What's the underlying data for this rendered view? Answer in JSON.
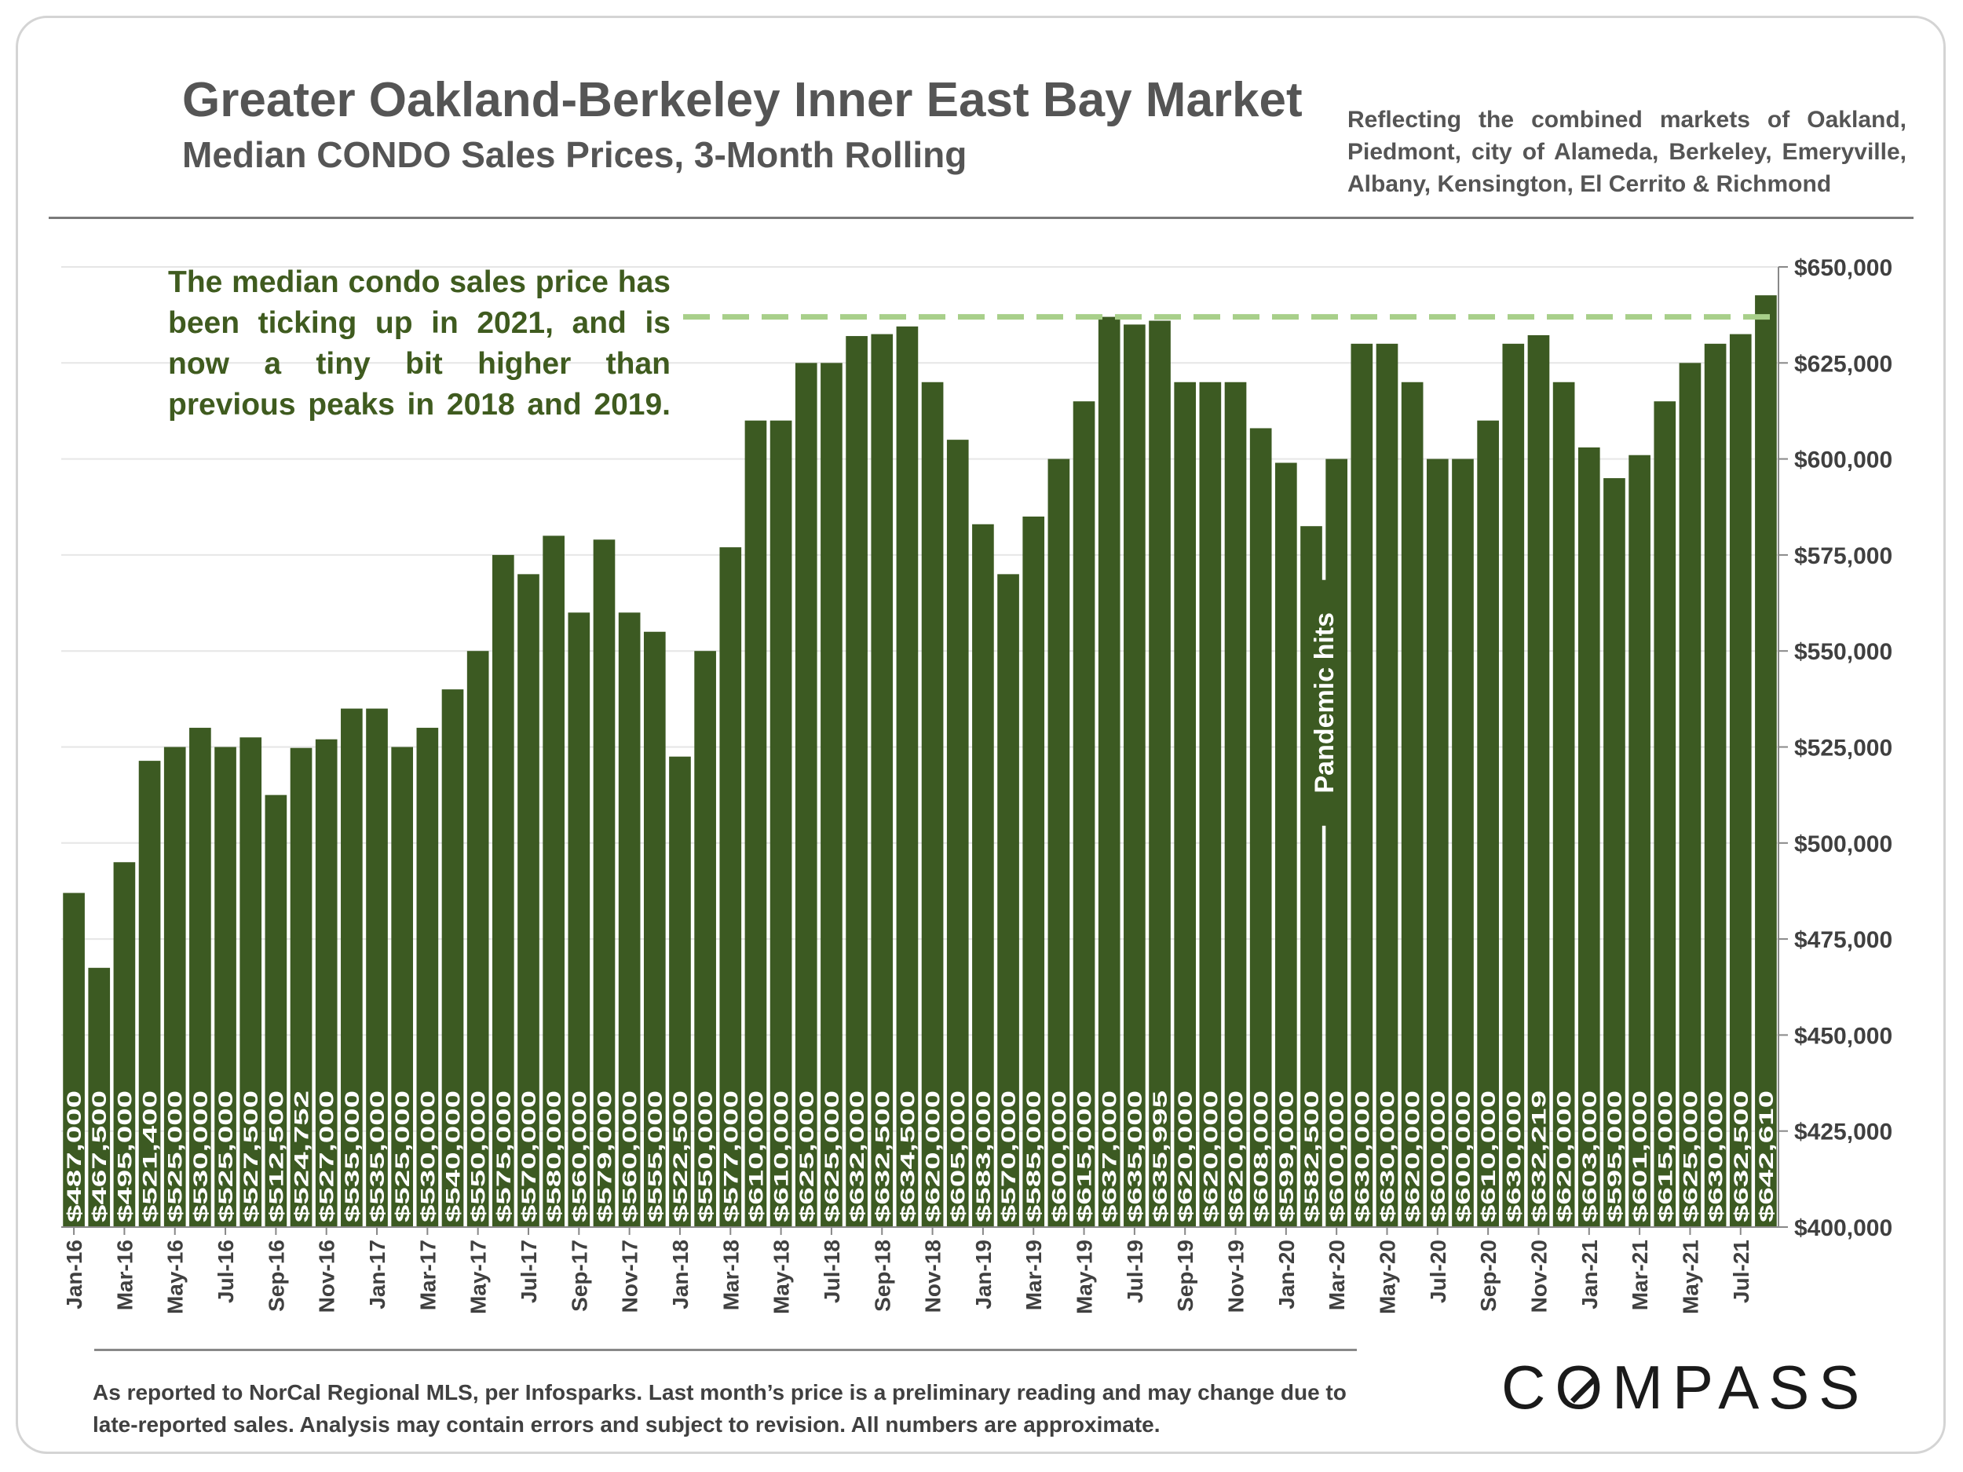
{
  "header": {
    "title": "Greater Oakland-Berkeley Inner East Bay Market",
    "subtitle": "Median CONDO Sales Prices, 3-Month Rolling",
    "note": "Reflecting the combined markets of Oakland, Piedmont, city of Alameda, Berkeley, Emeryville, Albany, Kensington, El Cerrito & Richmond"
  },
  "annotation": "The median condo sales price has been ticking up in 2021, and is now a tiny bit higher than previous peaks in 2018 and 2019.",
  "footer": "As reported to NorCal Regional MLS, per Infosparks. Last month’s price is a preliminary reading and may change due to late-reported sales. Analysis may contain errors and subject to revision. All numbers are approximate.",
  "brand": {
    "logo": "COMPASS"
  },
  "colors": {
    "bar": "#3c5a22",
    "reference_line": "#a8cf8a",
    "annotation_text": "#3f5b1f",
    "grid": "#e6e6e6"
  },
  "chart_data": {
    "type": "bar",
    "categories": [
      "Jan-16",
      "Feb-16",
      "Mar-16",
      "Apr-16",
      "May-16",
      "Jun-16",
      "Jul-16",
      "Aug-16",
      "Sep-16",
      "Oct-16",
      "Nov-16",
      "Dec-16",
      "Jan-17",
      "Feb-17",
      "Mar-17",
      "Apr-17",
      "May-17",
      "Jun-17",
      "Jul-17",
      "Aug-17",
      "Sep-17",
      "Oct-17",
      "Nov-17",
      "Dec-17",
      "Jan-18",
      "Feb-18",
      "Mar-18",
      "Apr-18",
      "May-18",
      "Jun-18",
      "Jul-18",
      "Aug-18",
      "Sep-18",
      "Oct-18",
      "Nov-18",
      "Dec-18",
      "Jan-19",
      "Feb-19",
      "Mar-19",
      "Apr-19",
      "May-19",
      "Jun-19",
      "Jul-19",
      "Aug-19",
      "Sep-19",
      "Oct-19",
      "Nov-19",
      "Dec-19",
      "Jan-20",
      "Feb-20",
      "Mar-20",
      "Apr-20",
      "May-20",
      "Jun-20",
      "Jul-20",
      "Aug-20",
      "Sep-20",
      "Oct-20",
      "Nov-20",
      "Dec-20",
      "Jan-21",
      "Feb-21",
      "Mar-21",
      "Apr-21",
      "May-21",
      "Jun-21",
      "Jul-21",
      "Aug-21"
    ],
    "values": [
      487000,
      467500,
      495000,
      521400,
      525000,
      530000,
      525000,
      527500,
      512500,
      524752,
      527000,
      535000,
      535000,
      525000,
      530000,
      540000,
      550000,
      575000,
      570000,
      580000,
      560000,
      579000,
      560000,
      555000,
      522500,
      550000,
      577000,
      610000,
      610000,
      625000,
      625000,
      632000,
      632500,
      634500,
      620000,
      605000,
      583000,
      570000,
      585000,
      600000,
      615000,
      637000,
      635000,
      635995,
      620000,
      620000,
      620000,
      608000,
      599000,
      582500,
      600000,
      630000,
      630000,
      620000,
      600000,
      600000,
      610000,
      630000,
      632219,
      620000,
      603000,
      595000,
      601000,
      615000,
      625000,
      630000,
      632500,
      642610
    ],
    "data_labels": [
      "$487,000",
      "$467,500",
      "$495,000",
      "$521,400",
      "$525,000",
      "$530,000",
      "$525,000",
      "$527,500",
      "$512,500",
      "$524,752",
      "$527,000",
      "$535,000",
      "$535,000",
      "$525,000",
      "$530,000",
      "$540,000",
      "$550,000",
      "$575,000",
      "$570,000",
      "$580,000",
      "$560,000",
      "$579,000",
      "$560,000",
      "$555,000",
      "$522,500",
      "$550,000",
      "$577,000",
      "$610,000",
      "$610,000",
      "$625,000",
      "$625,000",
      "$632,000",
      "$632,500",
      "$634,500",
      "$620,000",
      "$605,000",
      "$583,000",
      "$570,000",
      "$585,000",
      "$600,000",
      "$615,000",
      "$637,000",
      "$635,000",
      "$635,995",
      "$620,000",
      "$620,000",
      "$620,000",
      "$608,000",
      "$599,000",
      "$582,500",
      "$600,000",
      "$630,000",
      "$630,000",
      "$620,000",
      "$600,000",
      "$600,000",
      "$610,000",
      "$630,000",
      "$632,219",
      "$620,000",
      "$603,000",
      "$595,000",
      "$601,000",
      "$615,000",
      "$625,000",
      "$630,000",
      "$632,500",
      "$642,610"
    ],
    "x_tick_labels": [
      "Jan-16",
      "Mar-16",
      "May-16",
      "Jul-16",
      "Sep-16",
      "Nov-16",
      "Jan-17",
      "Mar-17",
      "May-17",
      "Jul-17",
      "Sep-17",
      "Nov-17",
      "Jan-18",
      "Mar-18",
      "May-18",
      "Jul-18",
      "Sep-18",
      "Nov-18",
      "Jan-19",
      "Mar-19",
      "May-19",
      "Jul-19",
      "Sep-19",
      "Nov-19",
      "Jan-20",
      "Mar-20",
      "May-20",
      "Jul-20",
      "Sep-20",
      "Nov-20",
      "Jan-21",
      "Mar-21",
      "May-21",
      "Jul-21"
    ],
    "y_tick_labels": [
      "$400,000",
      "$425,000",
      "$450,000",
      "$475,000",
      "$500,000",
      "$525,000",
      "$550,000",
      "$575,000",
      "$600,000",
      "$625,000",
      "$650,000"
    ],
    "ylim": [
      400000,
      650000
    ],
    "y_axis_side": "right",
    "grid": true,
    "reference_line": {
      "value": 637000,
      "style": "dashed"
    },
    "event_marker": {
      "label": "Pandemic hits",
      "category": "Mar-20"
    },
    "title": "Greater Oakland-Berkeley Inner East Bay Market",
    "xlabel": "",
    "ylabel": ""
  }
}
